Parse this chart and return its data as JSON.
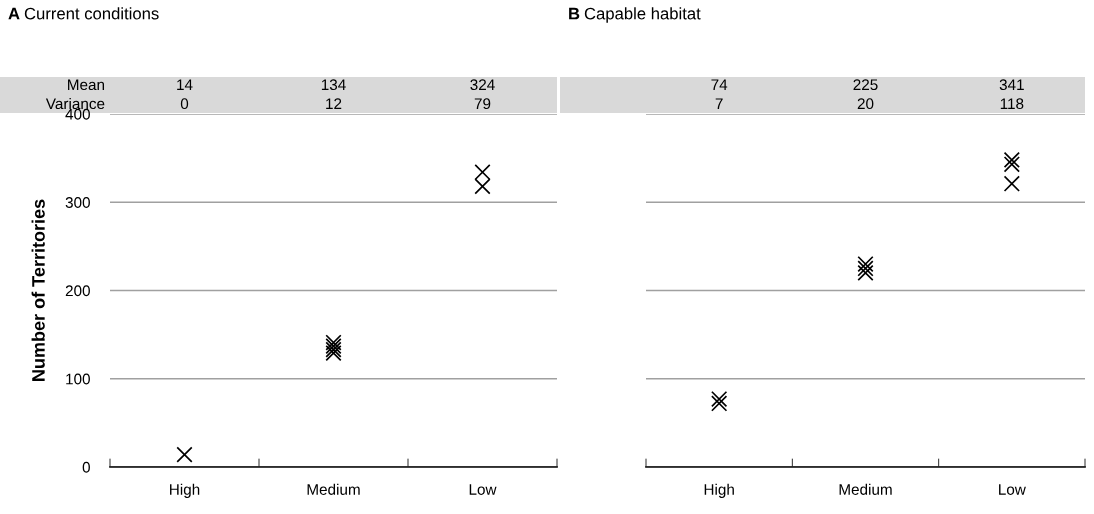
{
  "chart_data": [
    {
      "type": "scatter",
      "title": "A Current conditions",
      "ylabel": "Number of Territories",
      "categories": [
        "High",
        "Medium",
        "Low"
      ],
      "ylim": [
        0,
        400
      ],
      "yticks": [
        0,
        100,
        200,
        300,
        400
      ],
      "grid": "y",
      "marker": "cross",
      "series": [
        {
          "color": "#000000",
          "values": [
            14,
            129,
            334
          ]
        },
        {
          "color": "#000000",
          "values": [
            null,
            133,
            318
          ]
        },
        {
          "color": "#000000",
          "values": [
            null,
            137,
            null
          ]
        },
        {
          "color": "#000000",
          "values": [
            null,
            141,
            null
          ]
        }
      ],
      "annotations": [
        "Mean",
        "Variance",
        "14",
        "134",
        "324",
        "0",
        "12",
        "79"
      ]
    },
    {
      "type": "scatter",
      "title": "B Capable habitat",
      "categories": [
        "High",
        "Medium",
        "Low"
      ],
      "ylim": [
        0,
        400
      ],
      "yticks": [
        0,
        100,
        200,
        300,
        400
      ],
      "grid": "y",
      "marker": "cross",
      "tick_labels": "x",
      "series": [
        {
          "color": "#000000",
          "values": [
            72,
            220,
            348
          ]
        },
        {
          "color": "#000000",
          "values": [
            77,
            225,
            343
          ]
        },
        {
          "color": "#000000",
          "values": [
            null,
            230,
            321
          ]
        }
      ],
      "annotations": [
        "74",
        "225",
        "341",
        "7",
        "20",
        "118"
      ]
    }
  ]
}
